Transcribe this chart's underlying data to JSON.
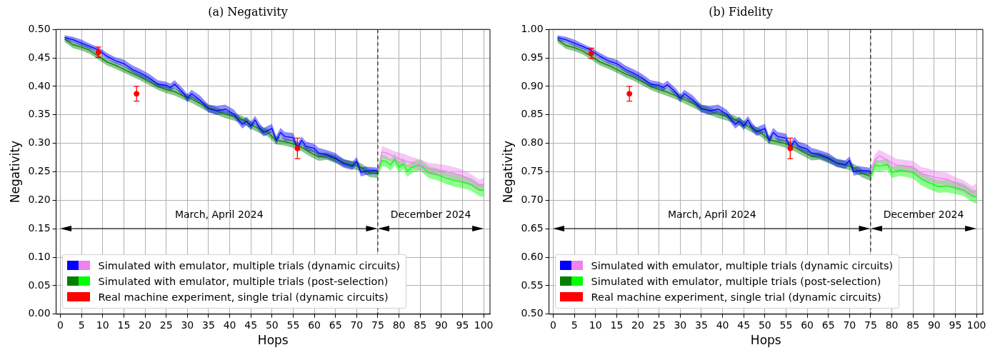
{
  "chart_data": [
    {
      "type": "line",
      "title": "(a) Negativity",
      "xlabel": "Hops",
      "ylabel": "Negativity",
      "xlim": [
        -1,
        101.5
      ],
      "xticks": [
        0,
        5,
        10,
        15,
        20,
        25,
        30,
        35,
        40,
        45,
        50,
        55,
        60,
        65,
        70,
        75,
        80,
        85,
        90,
        95,
        100
      ],
      "ylim": [
        0,
        0.5
      ],
      "yticks": [
        {
          "value": 0,
          "label": "0.00"
        },
        {
          "value": 0.05,
          "label": "0.05"
        },
        {
          "value": 0.1,
          "label": "0.10"
        },
        {
          "value": 0.15,
          "label": "0.15"
        },
        {
          "value": 0.2,
          "label": "0.20"
        },
        {
          "value": 0.25,
          "label": "0.25"
        },
        {
          "value": 0.3,
          "label": "0.30"
        },
        {
          "value": 0.35,
          "label": "0.35"
        },
        {
          "value": 0.4,
          "label": "0.40"
        },
        {
          "value": 0.45,
          "label": "0.45"
        },
        {
          "value": 0.5,
          "label": "0.50"
        }
      ],
      "grid": true,
      "legend": "bottom left",
      "marker": "none",
      "line_style": "solid",
      "ref_lines": [
        {
          "axis": "x",
          "value": 75,
          "color": "#000000",
          "line_style": "dashed"
        }
      ],
      "annotations": [
        "March, April 2024",
        "December 2024"
      ],
      "series": [
        {
          "name": "Simulated with emulator, multiple trials (dynamic circuits)",
          "type": "line",
          "color": "#0000ff",
          "x": [
            1,
            3,
            5,
            7,
            9,
            11,
            13,
            15,
            17,
            19,
            21,
            23,
            25,
            26,
            27,
            29,
            30,
            31,
            33,
            35,
            37,
            39,
            41,
            43,
            44,
            45,
            46,
            47,
            48,
            50,
            51,
            52,
            53,
            55,
            56,
            57,
            58,
            60,
            61,
            63,
            65,
            67,
            69,
            70,
            71,
            72,
            74,
            75
          ],
          "values": [
            0.486,
            0.482,
            0.476,
            0.47,
            0.464,
            0.453,
            0.445,
            0.44,
            0.43,
            0.423,
            0.415,
            0.404,
            0.402,
            0.398,
            0.404,
            0.389,
            0.379,
            0.387,
            0.376,
            0.361,
            0.357,
            0.36,
            0.351,
            0.333,
            0.339,
            0.33,
            0.341,
            0.328,
            0.319,
            0.326,
            0.305,
            0.319,
            0.312,
            0.31,
            0.292,
            0.305,
            0.295,
            0.291,
            0.283,
            0.28,
            0.274,
            0.264,
            0.26,
            0.269,
            0.249,
            0.251,
            0.252,
            0.251
          ],
          "upper": [
            0.49,
            0.487,
            0.482,
            0.475,
            0.469,
            0.459,
            0.451,
            0.447,
            0.437,
            0.43,
            0.422,
            0.411,
            0.408,
            0.405,
            0.411,
            0.396,
            0.386,
            0.394,
            0.384,
            0.368,
            0.366,
            0.368,
            0.359,
            0.341,
            0.347,
            0.338,
            0.348,
            0.336,
            0.327,
            0.334,
            0.313,
            0.327,
            0.32,
            0.318,
            0.3,
            0.312,
            0.303,
            0.299,
            0.292,
            0.288,
            0.283,
            0.272,
            0.268,
            0.276,
            0.258,
            0.259,
            0.258,
            0.257
          ],
          "lower": [
            0.481,
            0.477,
            0.471,
            0.465,
            0.459,
            0.448,
            0.44,
            0.435,
            0.425,
            0.417,
            0.409,
            0.398,
            0.396,
            0.392,
            0.397,
            0.383,
            0.372,
            0.38,
            0.37,
            0.354,
            0.35,
            0.353,
            0.345,
            0.326,
            0.332,
            0.323,
            0.334,
            0.321,
            0.312,
            0.319,
            0.298,
            0.312,
            0.305,
            0.303,
            0.285,
            0.298,
            0.288,
            0.284,
            0.276,
            0.273,
            0.267,
            0.257,
            0.253,
            0.262,
            0.242,
            0.244,
            0.246,
            0.245
          ]
        },
        {
          "type": "line",
          "color": "#ee82ee",
          "x": [
            75,
            76,
            77,
            79,
            81,
            83,
            85,
            87,
            89,
            91,
            93,
            95,
            97,
            99,
            100
          ],
          "values": [
            0.251,
            0.285,
            0.283,
            0.276,
            0.27,
            0.266,
            0.262,
            0.255,
            0.253,
            0.251,
            0.247,
            0.243,
            0.235,
            0.226,
            0.228
          ],
          "upper": [
            0.257,
            0.295,
            0.292,
            0.286,
            0.282,
            0.276,
            0.272,
            0.266,
            0.264,
            0.262,
            0.258,
            0.254,
            0.246,
            0.236,
            0.24
          ],
          "lower": [
            0.245,
            0.274,
            0.272,
            0.266,
            0.26,
            0.256,
            0.252,
            0.245,
            0.243,
            0.241,
            0.237,
            0.232,
            0.225,
            0.216,
            0.218
          ]
        },
        {
          "name": "Simulated with emulator, multiple trials (post-selection)",
          "type": "line",
          "color": "#008000",
          "x": [
            1,
            3,
            5,
            7,
            9,
            11,
            13,
            15,
            17,
            19,
            21,
            23,
            25,
            27,
            29,
            31,
            33,
            35,
            37,
            39,
            41,
            43,
            45,
            47,
            49,
            51,
            53,
            55,
            57,
            59,
            61,
            63,
            65,
            67,
            69,
            71,
            73,
            75
          ],
          "values": [
            0.483,
            0.473,
            0.469,
            0.463,
            0.453,
            0.443,
            0.437,
            0.43,
            0.423,
            0.416,
            0.408,
            0.4,
            0.394,
            0.391,
            0.383,
            0.378,
            0.37,
            0.362,
            0.357,
            0.351,
            0.347,
            0.342,
            0.333,
            0.325,
            0.319,
            0.305,
            0.303,
            0.299,
            0.293,
            0.284,
            0.276,
            0.278,
            0.272,
            0.266,
            0.262,
            0.258,
            0.248,
            0.247
          ],
          "upper": [
            0.487,
            0.478,
            0.474,
            0.468,
            0.458,
            0.448,
            0.442,
            0.436,
            0.429,
            0.421,
            0.414,
            0.406,
            0.4,
            0.397,
            0.389,
            0.384,
            0.376,
            0.368,
            0.363,
            0.357,
            0.353,
            0.348,
            0.339,
            0.331,
            0.325,
            0.312,
            0.309,
            0.305,
            0.299,
            0.291,
            0.283,
            0.284,
            0.279,
            0.272,
            0.269,
            0.265,
            0.255,
            0.254
          ],
          "lower": [
            0.478,
            0.467,
            0.463,
            0.457,
            0.447,
            0.437,
            0.431,
            0.424,
            0.417,
            0.41,
            0.402,
            0.394,
            0.388,
            0.384,
            0.377,
            0.371,
            0.363,
            0.355,
            0.35,
            0.344,
            0.34,
            0.335,
            0.326,
            0.318,
            0.312,
            0.298,
            0.296,
            0.292,
            0.286,
            0.277,
            0.269,
            0.271,
            0.265,
            0.259,
            0.255,
            0.251,
            0.241,
            0.239
          ]
        },
        {
          "type": "line",
          "color": "#00ff00",
          "x": [
            75,
            76,
            77,
            78,
            79,
            80,
            81,
            82,
            83,
            85,
            87,
            89,
            91,
            93,
            95,
            97,
            99,
            100
          ],
          "values": [
            0.249,
            0.27,
            0.268,
            0.262,
            0.272,
            0.258,
            0.264,
            0.251,
            0.258,
            0.262,
            0.249,
            0.245,
            0.239,
            0.235,
            0.232,
            0.228,
            0.218,
            0.217
          ],
          "upper": [
            0.256,
            0.28,
            0.278,
            0.272,
            0.282,
            0.268,
            0.274,
            0.262,
            0.268,
            0.272,
            0.26,
            0.256,
            0.25,
            0.246,
            0.243,
            0.239,
            0.229,
            0.228
          ],
          "lower": [
            0.241,
            0.26,
            0.258,
            0.252,
            0.262,
            0.248,
            0.254,
            0.241,
            0.248,
            0.252,
            0.239,
            0.235,
            0.229,
            0.224,
            0.221,
            0.217,
            0.207,
            0.206
          ]
        },
        {
          "name": "Real machine experiment, single trial (dynamic circuits)",
          "type": "scatter",
          "color": "#ff0000",
          "marker": "circle",
          "x": [
            9,
            18,
            56
          ],
          "values": [
            0.46,
            0.387,
            0.291
          ],
          "errors": [
            0.009,
            0.013,
            0.018
          ]
        }
      ]
    },
    {
      "type": "line",
      "title": "(b) Fidelity",
      "xlabel": "Hops",
      "ylabel": "Negativity",
      "xlim": [
        -1,
        101.5
      ],
      "xticks": [
        0,
        5,
        10,
        15,
        20,
        25,
        30,
        35,
        40,
        45,
        50,
        55,
        60,
        65,
        70,
        75,
        80,
        85,
        90,
        95,
        100
      ],
      "ylim": [
        0.5,
        1.0
      ],
      "yticks": [
        {
          "value": 0.5,
          "label": "0.50"
        },
        {
          "value": 0.55,
          "label": "0.55"
        },
        {
          "value": 0.6,
          "label": "0.60"
        },
        {
          "value": 0.65,
          "label": "0.65"
        },
        {
          "value": 0.7,
          "label": "0.70"
        },
        {
          "value": 0.75,
          "label": "0.75"
        },
        {
          "value": 0.8,
          "label": "0.80"
        },
        {
          "value": 0.85,
          "label": "0.85"
        },
        {
          "value": 0.9,
          "label": "0.90"
        },
        {
          "value": 0.95,
          "label": "0.95"
        },
        {
          "value": 1.0,
          "label": "1.00"
        }
      ],
      "grid": true,
      "legend": "bottom left",
      "marker": "none",
      "line_style": "solid",
      "ref_lines": [
        {
          "axis": "x",
          "value": 75,
          "color": "#000000",
          "line_style": "dashed"
        }
      ],
      "annotations": [
        "March, April 2024",
        "December 2024"
      ],
      "series": [
        {
          "name": "Simulated with emulator, multiple trials (dynamic circuits)",
          "type": "line",
          "color": "#0000ff",
          "x": [
            1,
            3,
            5,
            7,
            9,
            11,
            13,
            15,
            17,
            19,
            21,
            23,
            25,
            26,
            27,
            29,
            30,
            31,
            33,
            35,
            37,
            39,
            41,
            43,
            44,
            45,
            46,
            47,
            48,
            50,
            51,
            52,
            53,
            55,
            56,
            57,
            58,
            60,
            61,
            63,
            65,
            67,
            69,
            70,
            71,
            72,
            74,
            75
          ],
          "values": [
            0.986,
            0.982,
            0.976,
            0.97,
            0.963,
            0.953,
            0.945,
            0.94,
            0.93,
            0.923,
            0.915,
            0.904,
            0.902,
            0.898,
            0.903,
            0.889,
            0.879,
            0.887,
            0.876,
            0.861,
            0.857,
            0.86,
            0.851,
            0.833,
            0.839,
            0.83,
            0.841,
            0.828,
            0.82,
            0.826,
            0.805,
            0.819,
            0.812,
            0.809,
            0.793,
            0.804,
            0.795,
            0.79,
            0.783,
            0.78,
            0.774,
            0.765,
            0.762,
            0.77,
            0.75,
            0.752,
            0.752,
            0.751
          ],
          "upper": [
            0.99,
            0.987,
            0.982,
            0.975,
            0.968,
            0.959,
            0.951,
            0.947,
            0.937,
            0.93,
            0.922,
            0.911,
            0.908,
            0.905,
            0.91,
            0.896,
            0.886,
            0.894,
            0.884,
            0.868,
            0.866,
            0.868,
            0.859,
            0.841,
            0.847,
            0.838,
            0.848,
            0.836,
            0.828,
            0.834,
            0.813,
            0.827,
            0.82,
            0.817,
            0.801,
            0.811,
            0.803,
            0.798,
            0.792,
            0.788,
            0.783,
            0.773,
            0.77,
            0.777,
            0.758,
            0.76,
            0.758,
            0.757
          ],
          "lower": [
            0.981,
            0.977,
            0.971,
            0.965,
            0.958,
            0.948,
            0.94,
            0.935,
            0.925,
            0.917,
            0.909,
            0.898,
            0.896,
            0.892,
            0.897,
            0.883,
            0.872,
            0.88,
            0.87,
            0.854,
            0.85,
            0.853,
            0.845,
            0.826,
            0.832,
            0.823,
            0.834,
            0.821,
            0.813,
            0.819,
            0.798,
            0.812,
            0.805,
            0.802,
            0.786,
            0.797,
            0.788,
            0.783,
            0.776,
            0.773,
            0.767,
            0.758,
            0.755,
            0.763,
            0.743,
            0.745,
            0.746,
            0.745
          ]
        },
        {
          "type": "line",
          "color": "#ee82ee",
          "x": [
            75,
            76,
            77,
            79,
            81,
            83,
            85,
            87,
            89,
            91,
            93,
            95,
            97,
            99,
            100
          ],
          "values": [
            0.751,
            0.77,
            0.778,
            0.77,
            0.762,
            0.76,
            0.758,
            0.747,
            0.743,
            0.739,
            0.737,
            0.73,
            0.724,
            0.714,
            0.718
          ],
          "upper": [
            0.757,
            0.781,
            0.789,
            0.781,
            0.773,
            0.771,
            0.769,
            0.758,
            0.755,
            0.75,
            0.748,
            0.741,
            0.735,
            0.725,
            0.73
          ],
          "lower": [
            0.745,
            0.759,
            0.767,
            0.759,
            0.751,
            0.749,
            0.747,
            0.736,
            0.732,
            0.728,
            0.726,
            0.719,
            0.713,
            0.703,
            0.707
          ]
        },
        {
          "name": "Simulated with emulator, multiple trials (post-selection)",
          "type": "line",
          "color": "#008000",
          "x": [
            1,
            3,
            5,
            7,
            9,
            11,
            13,
            15,
            17,
            19,
            21,
            23,
            25,
            27,
            29,
            31,
            33,
            35,
            37,
            39,
            41,
            43,
            45,
            47,
            49,
            51,
            53,
            55,
            57,
            59,
            61,
            63,
            65,
            67,
            69,
            71,
            73,
            75
          ],
          "values": [
            0.982,
            0.972,
            0.968,
            0.962,
            0.953,
            0.943,
            0.937,
            0.93,
            0.922,
            0.916,
            0.908,
            0.9,
            0.894,
            0.89,
            0.883,
            0.877,
            0.87,
            0.862,
            0.857,
            0.851,
            0.847,
            0.842,
            0.834,
            0.826,
            0.819,
            0.806,
            0.803,
            0.799,
            0.793,
            0.785,
            0.777,
            0.778,
            0.772,
            0.766,
            0.762,
            0.757,
            0.747,
            0.742
          ],
          "upper": [
            0.986,
            0.977,
            0.973,
            0.967,
            0.958,
            0.948,
            0.942,
            0.936,
            0.928,
            0.921,
            0.914,
            0.906,
            0.9,
            0.896,
            0.889,
            0.883,
            0.876,
            0.868,
            0.863,
            0.857,
            0.853,
            0.848,
            0.84,
            0.832,
            0.825,
            0.813,
            0.809,
            0.805,
            0.799,
            0.792,
            0.784,
            0.784,
            0.779,
            0.772,
            0.769,
            0.764,
            0.754,
            0.749
          ],
          "lower": [
            0.977,
            0.966,
            0.962,
            0.956,
            0.947,
            0.937,
            0.931,
            0.924,
            0.916,
            0.91,
            0.902,
            0.894,
            0.888,
            0.883,
            0.877,
            0.87,
            0.863,
            0.855,
            0.85,
            0.844,
            0.84,
            0.835,
            0.827,
            0.819,
            0.812,
            0.799,
            0.796,
            0.792,
            0.786,
            0.778,
            0.77,
            0.771,
            0.765,
            0.759,
            0.755,
            0.75,
            0.74,
            0.734
          ]
        },
        {
          "type": "line",
          "color": "#00ff00",
          "x": [
            75,
            76,
            77,
            79,
            80,
            82,
            85,
            87,
            89,
            91,
            93,
            95,
            97,
            99,
            100
          ],
          "values": [
            0.742,
            0.762,
            0.76,
            0.763,
            0.749,
            0.753,
            0.749,
            0.737,
            0.73,
            0.724,
            0.725,
            0.722,
            0.718,
            0.708,
            0.705
          ],
          "upper": [
            0.749,
            0.772,
            0.77,
            0.773,
            0.759,
            0.763,
            0.76,
            0.748,
            0.741,
            0.735,
            0.736,
            0.733,
            0.729,
            0.719,
            0.716
          ],
          "lower": [
            0.735,
            0.752,
            0.75,
            0.753,
            0.739,
            0.743,
            0.738,
            0.726,
            0.719,
            0.713,
            0.714,
            0.711,
            0.707,
            0.697,
            0.694
          ]
        },
        {
          "name": "Real machine experiment, single trial (dynamic circuits)",
          "type": "scatter",
          "color": "#ff0000",
          "marker": "circle",
          "x": [
            9,
            18,
            56
          ],
          "values": [
            0.958,
            0.887,
            0.791
          ],
          "errors": [
            0.009,
            0.013,
            0.018
          ]
        }
      ]
    }
  ]
}
